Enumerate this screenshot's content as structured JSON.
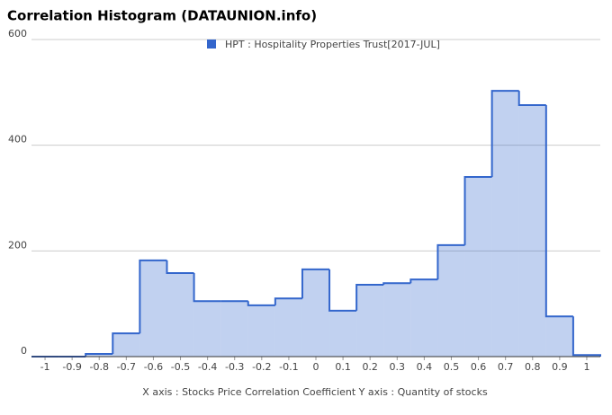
{
  "chart_data": {
    "type": "histogram",
    "title": "Correlation Histogram (DATAUNION.info)",
    "x_label": "X axis : Stocks Price Correlation Coefficient  Y axis : Quantity of stocks",
    "bins": [
      -1.05,
      -0.95,
      -0.85,
      -0.75,
      -0.65,
      -0.55,
      -0.45,
      -0.35,
      -0.25,
      -0.15,
      -0.05,
      0.05,
      0.15,
      0.25,
      0.35,
      0.45,
      0.55,
      0.65,
      0.75,
      0.85,
      0.95,
      1.05
    ],
    "series": [
      {
        "name": "HPT : Hospitality Properties Trust[2017-JUL]",
        "color": "#3366cc",
        "values": [
          0,
          0,
          5,
          44,
          182,
          158,
          105,
          105,
          97,
          110,
          165,
          87,
          136,
          139,
          146,
          211,
          340,
          503,
          476,
          76,
          3
        ]
      }
    ],
    "xlim": [
      -1.05,
      1.05
    ],
    "xticks": [
      -1,
      -0.9,
      -0.8,
      -0.7,
      -0.6,
      -0.5,
      -0.4,
      -0.3,
      -0.2,
      -0.1,
      0,
      0.1,
      0.2,
      0.3,
      0.4,
      0.5,
      0.6,
      0.7,
      0.8,
      0.9,
      1
    ],
    "ylim": [
      0,
      600
    ],
    "yticks": [
      0,
      200,
      400,
      600
    ],
    "grid": true,
    "legend": "top"
  }
}
